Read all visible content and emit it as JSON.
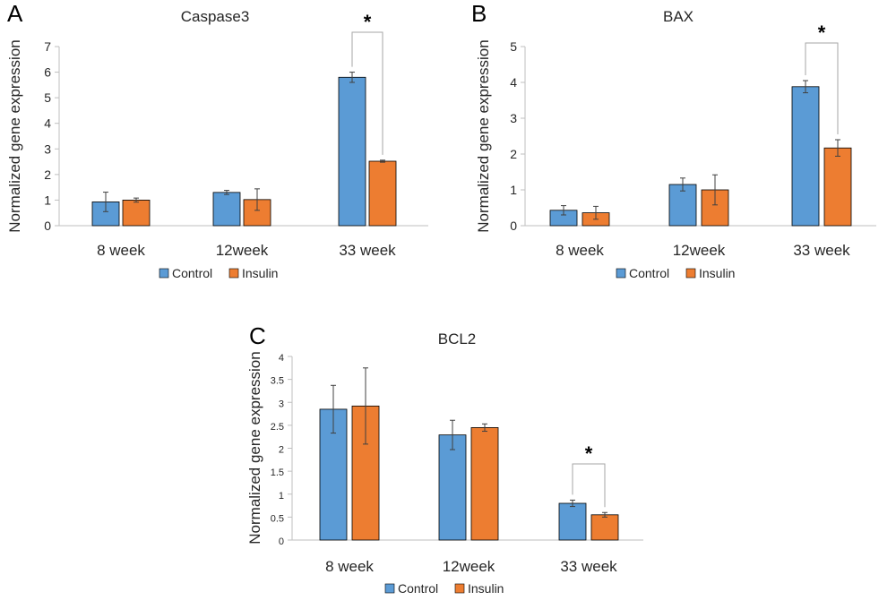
{
  "colors": {
    "control": "#5b9bd5",
    "insulin": "#ed7d31",
    "axis": "#bfbfbf",
    "bracket": "#a6a6a6",
    "error": "#404040",
    "bar_edge": "#000000"
  },
  "chart_data": [
    {
      "panel": "A",
      "type": "bar",
      "title": "Caspase3",
      "ylabel": "Normalized gene expression",
      "xlabel": "",
      "categories": [
        "8 week",
        "12week",
        "33 week"
      ],
      "ylim": [
        0,
        7
      ],
      "yticks": [
        "0",
        "1",
        "2",
        "3",
        "4",
        "5",
        "6",
        "7"
      ],
      "series": [
        {
          "name": "Control",
          "values": [
            0.93,
            1.3,
            5.8
          ],
          "errors": [
            0.38,
            0.08,
            0.2
          ]
        },
        {
          "name": "Insulin",
          "values": [
            1.0,
            1.02,
            2.52
          ],
          "errors": [
            0.08,
            0.42,
            0.04
          ]
        }
      ],
      "significance": [
        {
          "category": 2,
          "label": "*"
        }
      ],
      "legend": "bottom"
    },
    {
      "panel": "B",
      "type": "bar",
      "title": "BAX",
      "ylabel": "Normalized gene expression",
      "xlabel": "",
      "categories": [
        "8 week",
        "12week",
        "33 week"
      ],
      "ylim": [
        0,
        5
      ],
      "yticks": [
        "0",
        "1",
        "2",
        "3",
        "4",
        "5"
      ],
      "series": [
        {
          "name": "Control",
          "values": [
            0.43,
            1.15,
            3.88
          ],
          "errors": [
            0.13,
            0.18,
            0.17
          ]
        },
        {
          "name": "Insulin",
          "values": [
            0.36,
            1.0,
            2.17
          ],
          "errors": [
            0.18,
            0.42,
            0.23
          ]
        }
      ],
      "significance": [
        {
          "category": 2,
          "label": "*"
        }
      ],
      "legend": "bottom"
    },
    {
      "panel": "C",
      "type": "bar",
      "title": "BCL2",
      "ylabel": "Normalized gene expression",
      "xlabel": "",
      "categories": [
        "8 week",
        "12week",
        "33 week"
      ],
      "ylim": [
        0,
        4
      ],
      "yticks": [
        "0",
        "0.5",
        "1",
        "1.5",
        "2",
        "2.5",
        "3",
        "3.5",
        "4"
      ],
      "series": [
        {
          "name": "Control",
          "values": [
            2.85,
            2.29,
            0.8
          ],
          "errors": [
            0.52,
            0.32,
            0.07
          ]
        },
        {
          "name": "Insulin",
          "values": [
            2.92,
            2.45,
            0.55
          ],
          "errors": [
            0.83,
            0.08,
            0.05
          ]
        }
      ],
      "significance": [
        {
          "category": 2,
          "label": "*"
        }
      ],
      "legend": "bottom"
    }
  ]
}
